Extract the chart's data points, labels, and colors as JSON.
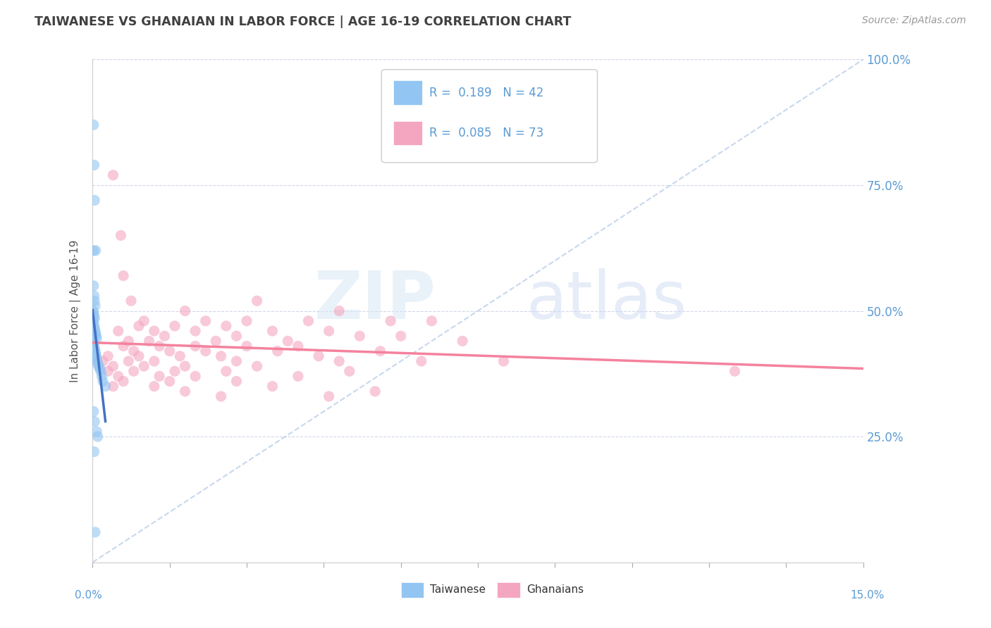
{
  "title": "TAIWANESE VS GHANAIAN IN LABOR FORCE | AGE 16-19 CORRELATION CHART",
  "source": "Source: ZipAtlas.com",
  "ylabel": "In Labor Force | Age 16-19",
  "xlim": [
    0.0,
    15.0
  ],
  "ylim": [
    0.0,
    100.0
  ],
  "taiwanese_color": "#92C5F2",
  "ghanaian_color": "#F4A6C0",
  "taiwanese_line_color": "#4472C4",
  "ghanaian_line_color": "#F4829E",
  "ref_line_color": "#B0C4DE",
  "axis_label_color": "#5B9BD5",
  "taiwanese_scatter": [
    [
      0.02,
      87.0
    ],
    [
      0.03,
      79.0
    ],
    [
      0.04,
      72.0
    ],
    [
      0.02,
      62.0
    ],
    [
      0.06,
      62.0
    ],
    [
      0.02,
      55.0
    ],
    [
      0.03,
      53.0
    ],
    [
      0.04,
      52.0
    ],
    [
      0.05,
      51.0
    ],
    [
      0.01,
      50.0
    ],
    [
      0.02,
      49.5
    ],
    [
      0.03,
      49.0
    ],
    [
      0.04,
      48.5
    ],
    [
      0.01,
      48.0
    ],
    [
      0.02,
      47.5
    ],
    [
      0.03,
      47.0
    ],
    [
      0.04,
      46.5
    ],
    [
      0.05,
      46.0
    ],
    [
      0.06,
      45.5
    ],
    [
      0.07,
      45.0
    ],
    [
      0.08,
      44.5
    ],
    [
      0.01,
      44.0
    ],
    [
      0.02,
      43.5
    ],
    [
      0.03,
      43.0
    ],
    [
      0.04,
      42.5
    ],
    [
      0.05,
      42.0
    ],
    [
      0.06,
      41.5
    ],
    [
      0.07,
      41.0
    ],
    [
      0.08,
      40.5
    ],
    [
      0.09,
      40.0
    ],
    [
      0.1,
      39.5
    ],
    [
      0.12,
      39.0
    ],
    [
      0.14,
      38.5
    ],
    [
      0.16,
      38.0
    ],
    [
      0.18,
      37.0
    ],
    [
      0.2,
      36.0
    ],
    [
      0.25,
      35.0
    ],
    [
      0.02,
      30.0
    ],
    [
      0.04,
      28.0
    ],
    [
      0.08,
      26.0
    ],
    [
      0.1,
      25.0
    ],
    [
      0.03,
      22.0
    ],
    [
      0.05,
      6.0
    ]
  ],
  "ghanaian_scatter": [
    [
      0.4,
      77.0
    ],
    [
      0.55,
      65.0
    ],
    [
      0.6,
      57.0
    ],
    [
      0.75,
      52.0
    ],
    [
      3.2,
      52.0
    ],
    [
      1.8,
      50.0
    ],
    [
      4.8,
      50.0
    ],
    [
      1.0,
      48.0
    ],
    [
      2.2,
      48.0
    ],
    [
      3.0,
      48.0
    ],
    [
      4.2,
      48.0
    ],
    [
      5.8,
      48.0
    ],
    [
      6.6,
      48.0
    ],
    [
      0.9,
      47.0
    ],
    [
      1.6,
      47.0
    ],
    [
      2.6,
      47.0
    ],
    [
      0.5,
      46.0
    ],
    [
      1.2,
      46.0
    ],
    [
      2.0,
      46.0
    ],
    [
      3.5,
      46.0
    ],
    [
      4.6,
      46.0
    ],
    [
      1.4,
      45.0
    ],
    [
      2.8,
      45.0
    ],
    [
      5.2,
      45.0
    ],
    [
      6.0,
      45.0
    ],
    [
      0.7,
      44.0
    ],
    [
      1.1,
      44.0
    ],
    [
      2.4,
      44.0
    ],
    [
      3.8,
      44.0
    ],
    [
      7.2,
      44.0
    ],
    [
      0.6,
      43.0
    ],
    [
      1.3,
      43.0
    ],
    [
      2.0,
      43.0
    ],
    [
      3.0,
      43.0
    ],
    [
      4.0,
      43.0
    ],
    [
      0.8,
      42.0
    ],
    [
      1.5,
      42.0
    ],
    [
      2.2,
      42.0
    ],
    [
      3.6,
      42.0
    ],
    [
      5.6,
      42.0
    ],
    [
      0.3,
      41.0
    ],
    [
      0.9,
      41.0
    ],
    [
      1.7,
      41.0
    ],
    [
      2.5,
      41.0
    ],
    [
      4.4,
      41.0
    ],
    [
      0.2,
      40.0
    ],
    [
      0.7,
      40.0
    ],
    [
      1.2,
      40.0
    ],
    [
      2.8,
      40.0
    ],
    [
      4.8,
      40.0
    ],
    [
      6.4,
      40.0
    ],
    [
      8.0,
      40.0
    ],
    [
      0.4,
      39.0
    ],
    [
      1.0,
      39.0
    ],
    [
      1.8,
      39.0
    ],
    [
      3.2,
      39.0
    ],
    [
      0.3,
      38.0
    ],
    [
      0.8,
      38.0
    ],
    [
      1.6,
      38.0
    ],
    [
      2.6,
      38.0
    ],
    [
      5.0,
      38.0
    ],
    [
      0.5,
      37.0
    ],
    [
      1.3,
      37.0
    ],
    [
      2.0,
      37.0
    ],
    [
      4.0,
      37.0
    ],
    [
      0.6,
      36.0
    ],
    [
      1.5,
      36.0
    ],
    [
      2.8,
      36.0
    ],
    [
      0.4,
      35.0
    ],
    [
      1.2,
      35.0
    ],
    [
      3.5,
      35.0
    ],
    [
      1.8,
      34.0
    ],
    [
      5.5,
      34.0
    ],
    [
      2.5,
      33.0
    ],
    [
      4.6,
      33.0
    ],
    [
      12.5,
      38.0
    ]
  ]
}
